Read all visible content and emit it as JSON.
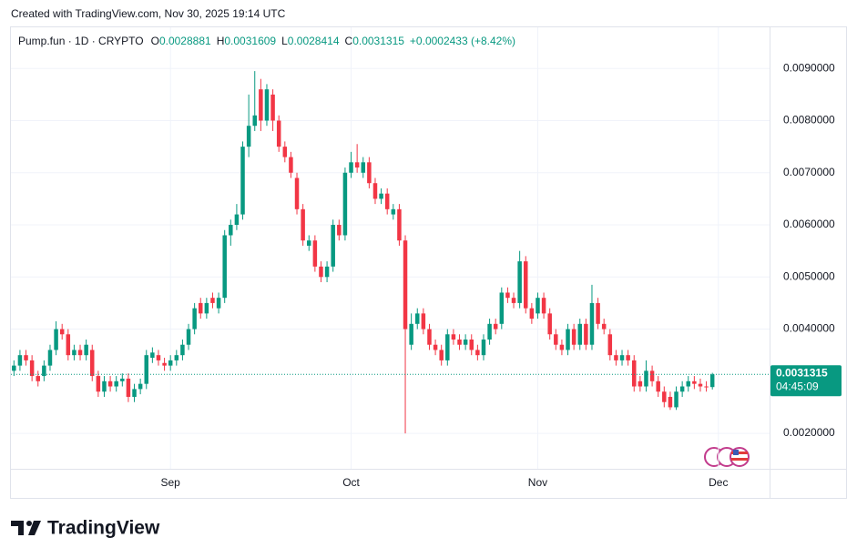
{
  "watermark": "Created with TradingView.com, Nov 30, 2025 19:14 UTC",
  "brand": "TradingView",
  "chart_data": {
    "type": "candlestick",
    "symbol": "Pump.fun · 1D · CRYPTO",
    "ohlc_labels": [
      "O",
      "H",
      "L",
      "C"
    ],
    "change": "+0.0002433 (+8.42%)",
    "countdown": "04:45:09",
    "colors": {
      "up": "#089981",
      "down": "#f23645"
    },
    "open": [
      0.0032,
      0.0033,
      0.0035,
      0.0034,
      0.0031,
      0.0031,
      0.0033,
      0.0036,
      0.004,
      0.0039,
      0.0035,
      0.0036,
      0.0035,
      0.0036,
      0.0031,
      0.0028,
      0.003,
      0.0029,
      0.003,
      0.00305,
      0.0027,
      0.00285,
      0.00295,
      0.00345,
      0.0035,
      0.00335,
      0.0033,
      0.0034,
      0.0035,
      0.0037,
      0.004,
      0.0045,
      0.0043,
      0.0046,
      0.0044,
      0.0046,
      0.0058,
      0.006,
      0.0062,
      0.0075,
      0.0079,
      0.0086,
      0.008,
      0.0085,
      0.008,
      0.0075,
      0.0073,
      0.0069,
      0.0063,
      0.0056,
      0.0057,
      0.0052,
      0.005,
      0.0052,
      0.006,
      0.0058,
      0.007,
      0.0072,
      0.007,
      0.0072,
      0.0068,
      0.0065,
      0.0066,
      0.0062,
      0.0063,
      0.0057,
      0.0037,
      0.0041,
      0.0043,
      0.004,
      0.0037,
      0.0036,
      0.0034,
      0.0039,
      0.0038,
      0.0037,
      0.0038,
      0.0036,
      0.0035,
      0.0038,
      0.0041,
      0.0041,
      0.0047,
      0.0046,
      0.0045,
      0.0053,
      0.0044,
      0.0043,
      0.0046,
      0.0043,
      0.0039,
      0.0037,
      0.0036,
      0.004,
      0.0037,
      0.0041,
      0.0037,
      0.0045,
      0.0041,
      0.0039,
      0.0035,
      0.0034,
      0.0035,
      0.0034,
      0.003,
      0.0029,
      0.0032,
      0.003,
      0.0028,
      0.0027,
      0.0025,
      0.0028,
      0.0029,
      0.003,
      0.00295,
      0.0029,
      0.0028881
    ],
    "high": [
      0.0034,
      0.0036,
      0.0036,
      0.0035,
      0.0032,
      0.0034,
      0.0037,
      0.00415,
      0.0041,
      0.004,
      0.0037,
      0.0037,
      0.0038,
      0.0037,
      0.0032,
      0.0031,
      0.0031,
      0.0031,
      0.00315,
      0.00315,
      0.00295,
      0.00305,
      0.0036,
      0.00365,
      0.0036,
      0.00345,
      0.0035,
      0.0036,
      0.0038,
      0.0041,
      0.0045,
      0.0046,
      0.0046,
      0.0047,
      0.0047,
      0.0059,
      0.0061,
      0.0064,
      0.0076,
      0.0085,
      0.00895,
      0.0088,
      0.0087,
      0.0086,
      0.0081,
      0.0076,
      0.0074,
      0.007,
      0.0064,
      0.0058,
      0.0058,
      0.0053,
      0.0053,
      0.0061,
      0.0061,
      0.0071,
      0.0074,
      0.00755,
      0.0073,
      0.0073,
      0.0069,
      0.0067,
      0.0067,
      0.0064,
      0.0064,
      0.0058,
      0.0043,
      0.0044,
      0.0044,
      0.0041,
      0.0038,
      0.0037,
      0.004,
      0.004,
      0.0039,
      0.0039,
      0.0039,
      0.0037,
      0.0039,
      0.0042,
      0.0042,
      0.0048,
      0.0048,
      0.0047,
      0.0055,
      0.0054,
      0.0045,
      0.0047,
      0.0047,
      0.0044,
      0.004,
      0.0038,
      0.0041,
      0.0041,
      0.0042,
      0.0042,
      0.00485,
      0.0046,
      0.0042,
      0.004,
      0.0036,
      0.0036,
      0.0036,
      0.0035,
      0.0031,
      0.0034,
      0.0033,
      0.0031,
      0.0029,
      0.0028,
      0.0029,
      0.003,
      0.0031,
      0.0031,
      0.00305,
      0.003,
      0.0031609
    ],
    "low": [
      0.0031,
      0.0032,
      0.0033,
      0.003,
      0.0029,
      0.003,
      0.0032,
      0.0035,
      0.0038,
      0.0034,
      0.0034,
      0.0034,
      0.0034,
      0.003,
      0.0027,
      0.0027,
      0.0028,
      0.0028,
      0.0029,
      0.0026,
      0.0026,
      0.00275,
      0.00285,
      0.00335,
      0.0033,
      0.0032,
      0.0032,
      0.0033,
      0.0034,
      0.0036,
      0.0039,
      0.0042,
      0.0042,
      0.0044,
      0.0043,
      0.0045,
      0.0056,
      0.0059,
      0.0061,
      0.0073,
      0.0078,
      0.0078,
      0.0079,
      0.0078,
      0.0074,
      0.0072,
      0.0069,
      0.0062,
      0.0056,
      0.0055,
      0.0051,
      0.0049,
      0.0049,
      0.0051,
      0.0057,
      0.0057,
      0.0069,
      0.007,
      0.0069,
      0.0067,
      0.0064,
      0.0064,
      0.0062,
      0.0061,
      0.0056,
      0.002,
      0.0036,
      0.004,
      0.0039,
      0.0036,
      0.0035,
      0.0033,
      0.0033,
      0.0037,
      0.0036,
      0.0036,
      0.0035,
      0.0034,
      0.0034,
      0.0037,
      0.0039,
      0.004,
      0.0045,
      0.0044,
      0.0044,
      0.0043,
      0.0041,
      0.0042,
      0.0042,
      0.0038,
      0.0036,
      0.0035,
      0.0035,
      0.0036,
      0.0036,
      0.0036,
      0.0036,
      0.004,
      0.0039,
      0.0034,
      0.0033,
      0.0033,
      0.0033,
      0.0028,
      0.0028,
      0.0028,
      0.0029,
      0.0027,
      0.0025,
      0.00245,
      0.00245,
      0.0027,
      0.0028,
      0.00285,
      0.0028,
      0.0028,
      0.0028414
    ],
    "close": [
      0.0033,
      0.0035,
      0.0034,
      0.0031,
      0.003,
      0.0033,
      0.0036,
      0.004,
      0.0039,
      0.0035,
      0.0036,
      0.0035,
      0.0037,
      0.0031,
      0.0028,
      0.003,
      0.0029,
      0.003,
      0.00305,
      0.0027,
      0.00285,
      0.00295,
      0.0035,
      0.00355,
      0.0034,
      0.0033,
      0.0034,
      0.0035,
      0.0037,
      0.004,
      0.0044,
      0.0043,
      0.0045,
      0.0045,
      0.0046,
      0.0058,
      0.006,
      0.0062,
      0.0075,
      0.0079,
      0.0081,
      0.008,
      0.0086,
      0.008,
      0.0075,
      0.0073,
      0.007,
      0.0063,
      0.0057,
      0.0057,
      0.0052,
      0.005,
      0.0052,
      0.006,
      0.0058,
      0.007,
      0.0072,
      0.0071,
      0.0072,
      0.0068,
      0.0065,
      0.0066,
      0.0063,
      0.0063,
      0.0057,
      0.004,
      0.0041,
      0.0043,
      0.004,
      0.0037,
      0.0036,
      0.0034,
      0.0039,
      0.0038,
      0.0037,
      0.0038,
      0.0036,
      0.0035,
      0.0038,
      0.0041,
      0.004,
      0.0047,
      0.0046,
      0.0045,
      0.0053,
      0.0044,
      0.0042,
      0.0046,
      0.0043,
      0.0039,
      0.0037,
      0.0036,
      0.004,
      0.0037,
      0.0041,
      0.0037,
      0.0045,
      0.0041,
      0.004,
      0.0035,
      0.0034,
      0.0035,
      0.0034,
      0.0029,
      0.0029,
      0.0032,
      0.003,
      0.0028,
      0.0026,
      0.0025,
      0.0028,
      0.0029,
      0.003,
      0.00295,
      0.0029,
      0.0028881,
      0.0031315
    ],
    "xlim": [
      -0.5,
      125.5
    ],
    "xticks": [
      {
        "value": 26,
        "label": "Sep"
      },
      {
        "value": 56,
        "label": "Oct"
      },
      {
        "value": 87,
        "label": "Nov"
      },
      {
        "value": 117,
        "label": "Dec"
      }
    ],
    "ylim": [
      0.00132,
      0.00979
    ],
    "yticks": [
      {
        "value": 0.002,
        "label": "0.0020000"
      },
      {
        "value": 0.004,
        "label": "0.0040000"
      },
      {
        "value": 0.005,
        "label": "0.0050000"
      },
      {
        "value": 0.006,
        "label": "0.0060000"
      },
      {
        "value": 0.007,
        "label": "0.0070000"
      },
      {
        "value": 0.008,
        "label": "0.0080000"
      },
      {
        "value": 0.009,
        "label": "0.0090000"
      }
    ],
    "grid": true,
    "last_price_line": true
  }
}
